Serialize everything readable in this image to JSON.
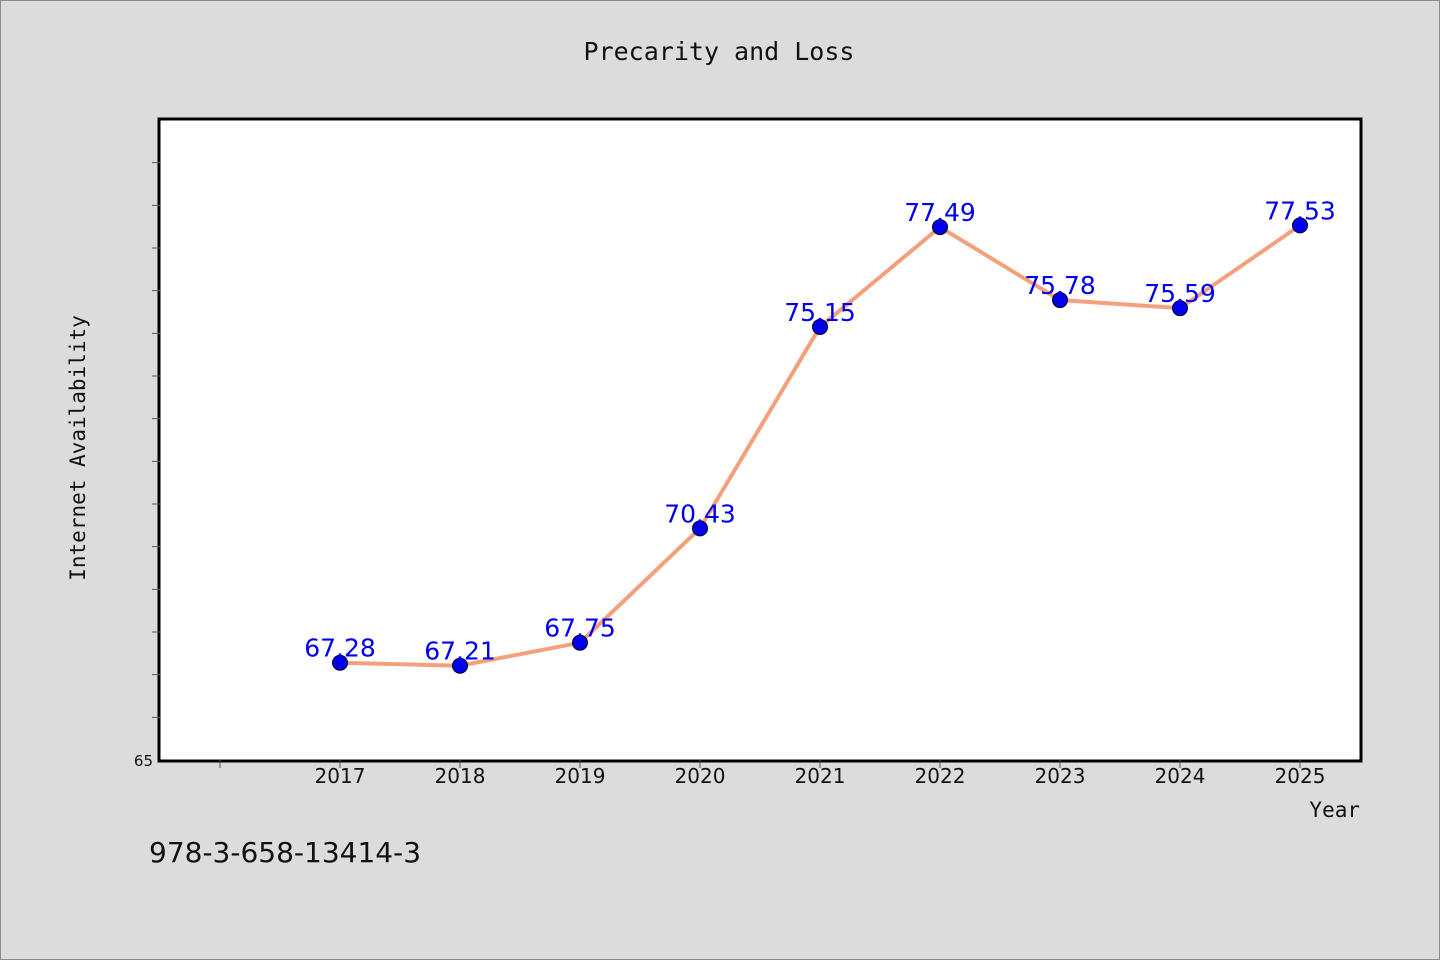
{
  "chart_data": {
    "type": "line",
    "title": "Precarity and Loss",
    "xlabel": "Year",
    "ylabel": "Internet Availability",
    "x": [
      "2017",
      "2018",
      "2019",
      "2020",
      "2021",
      "2022",
      "2023",
      "2024",
      "2025"
    ],
    "series": [
      {
        "values": [
          67.28,
          67.21,
          67.75,
          70.43,
          75.15,
          77.49,
          75.78,
          75.59,
          77.53
        ],
        "labels": [
          "67.28",
          "67.21",
          "67.75",
          "70.43",
          "75.15",
          "77.49",
          "75.78",
          "75.59",
          "77.53"
        ],
        "line_color": "#f4a07c",
        "marker_color": "#0000ee"
      }
    ],
    "ylim": [
      65,
      80
    ],
    "y_tick_labels": [
      "65"
    ],
    "grid": false,
    "legend": false
  },
  "footer": {
    "isbn": "978-3-658-13414-3"
  }
}
